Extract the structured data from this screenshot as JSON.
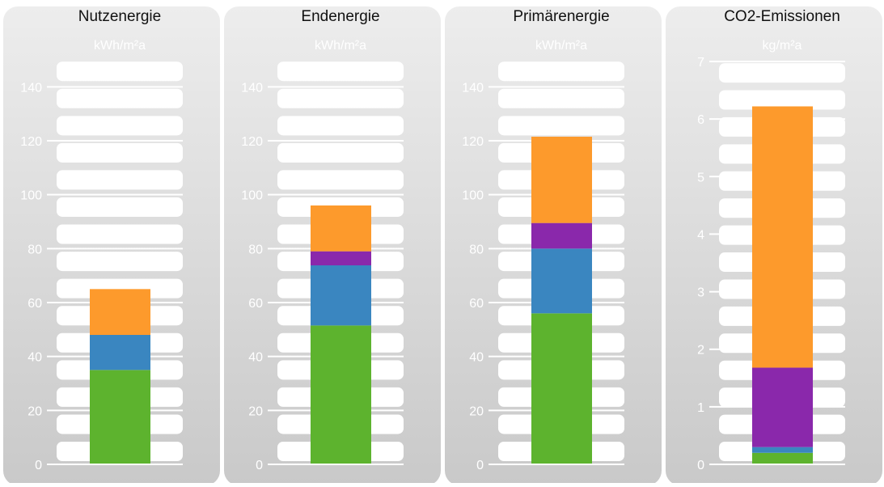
{
  "chart_data": [
    {
      "type": "bar",
      "title": "Nutzenergie",
      "unit": "kWh/m²a",
      "ylim": [
        0,
        150
      ],
      "ticks": [
        0,
        20,
        40,
        60,
        80,
        100,
        120,
        140
      ],
      "segments": [
        35,
        13,
        17
      ],
      "segment_colors": [
        "#5db32e",
        "#3a86c0",
        "#fd9a2c"
      ]
    },
    {
      "type": "bar",
      "title": "Endenergie",
      "unit": "kWh/m²a",
      "ylim": [
        0,
        150
      ],
      "ticks": [
        0,
        20,
        40,
        60,
        80,
        100,
        120,
        140
      ],
      "segments": [
        51.5,
        22.3,
        5.2,
        17
      ],
      "segment_colors": [
        "#5db32e",
        "#3a86c0",
        "#8a28ab",
        "#fd9a2c"
      ]
    },
    {
      "type": "bar",
      "title": "Primärenergie",
      "unit": "kWh/m²a",
      "ylim": [
        0,
        150
      ],
      "ticks": [
        0,
        20,
        40,
        60,
        80,
        100,
        120,
        140
      ],
      "segments": [
        56,
        24,
        9.5,
        32
      ],
      "segment_colors": [
        "#5db32e",
        "#3a86c0",
        "#8a28ab",
        "#fd9a2c"
      ]
    },
    {
      "type": "bar",
      "title": "CO2-Emissionen",
      "unit": "kg/m²a",
      "ylim": [
        0,
        7
      ],
      "ticks": [
        0,
        1,
        2,
        3,
        4,
        5,
        6,
        7
      ],
      "segments": [
        0.2,
        0.1,
        1.38,
        4.54
      ],
      "segment_colors": [
        "#5db32e",
        "#3a86c0",
        "#8a28ab",
        "#fd9a2c"
      ]
    }
  ]
}
